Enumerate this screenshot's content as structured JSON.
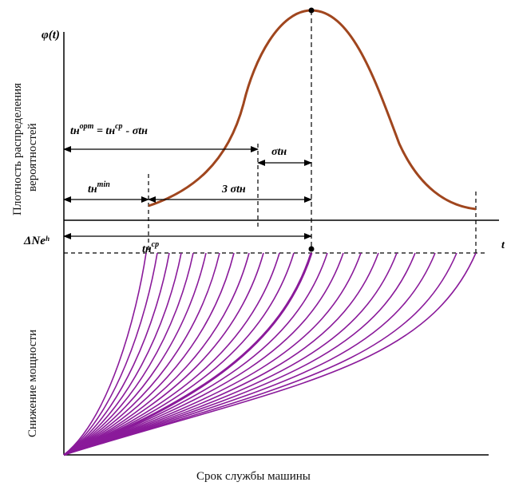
{
  "colors": {
    "density_curve": "#a0461e",
    "wear_curves": "#8a1a9a",
    "axes": "#000000"
  },
  "labels": {
    "phi_symbol": "φ(t)",
    "density_axis_line1": "Плотность распределения",
    "density_axis_line2": "вероятностей",
    "power_axis": "Снижение мощности",
    "x_axis": "Срок службы машины",
    "delta_ne": "ΔNeʰ",
    "t_right": "t",
    "t_opt_lhs": "tн",
    "t_opt_sup": "opm",
    "t_opt_eq": " = tн",
    "t_opt_sup2": "cp",
    "t_opt_rhs": "- σtн",
    "sigma": "σtн",
    "t_min": "tн",
    "t_min_sup": "min",
    "three_sigma": "3 σtн",
    "t_cp": "tн",
    "t_cp_sup": "cp"
  },
  "chart_data": {
    "type": "diagram",
    "density_curve": "bell-shaped probability density of machine service life",
    "wear_curve_count": 14,
    "highlighted_curve": "mean service life"
  }
}
